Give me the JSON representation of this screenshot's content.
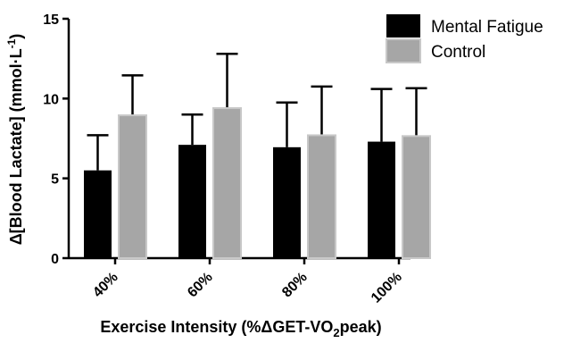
{
  "chart_data": {
    "type": "bar",
    "title": "",
    "xlabel_parts": [
      "Exercise Intensity (%ΔGET-VO",
      "2",
      "peak)"
    ],
    "ylabel_parts": [
      "Δ[Blood Lactate] (mmol·L",
      "-1",
      ")"
    ],
    "categories": [
      "40%",
      "60%",
      "80%",
      "100%"
    ],
    "ylim": [
      0,
      15
    ],
    "yticks": [
      "0",
      "5",
      "10",
      "15"
    ],
    "grid": false,
    "legend_position": "top-right",
    "series": [
      {
        "name": "Mental Fatigue",
        "color": "#000000",
        "values": [
          5.5,
          7.1,
          6.95,
          7.3
        ],
        "error_upper": [
          7.7,
          9.0,
          9.75,
          10.6
        ]
      },
      {
        "name": "Control",
        "color": "#a6a6a6",
        "values": [
          8.95,
          9.4,
          7.7,
          7.65
        ],
        "error_upper": [
          11.45,
          12.8,
          10.75,
          10.65
        ]
      }
    ]
  }
}
